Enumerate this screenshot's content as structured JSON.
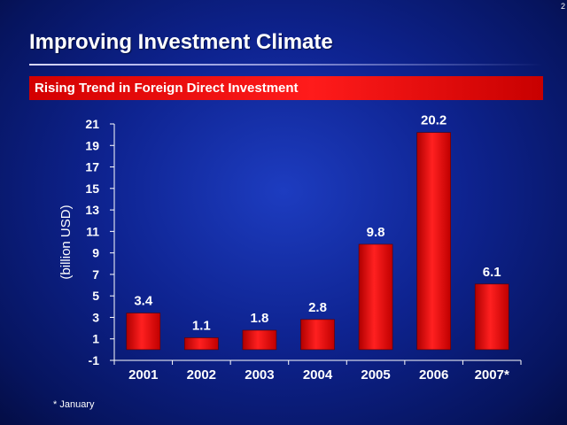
{
  "slide_number": "2",
  "title": "Improving Investment Climate",
  "subtitle": "Rising Trend in Foreign Direct Investment",
  "footnote": "* January",
  "colors": {
    "bar": "#ff1a1a",
    "bar_dark": "#b00000",
    "axis": "#ffffff"
  },
  "chart_data": {
    "type": "bar",
    "categories": [
      "2001",
      "2002",
      "2003",
      "2004",
      "2005",
      "2006",
      "2007*"
    ],
    "values": [
      3.4,
      1.1,
      1.8,
      2.8,
      9.8,
      20.2,
      6.1
    ],
    "data_labels": [
      "3.4",
      "1.1",
      "1.8",
      "2.8",
      "9.8",
      "20.2",
      "6.1"
    ],
    "title": "Rising Trend in Foreign Direct Investment",
    "xlabel": "",
    "ylabel": "(billion USD)",
    "ylim": [
      -1,
      21
    ],
    "yticks": [
      "-1",
      "1",
      "3",
      "5",
      "7",
      "9",
      "11",
      "13",
      "15",
      "17",
      "19",
      "21"
    ],
    "grid": false,
    "legend": "none"
  }
}
